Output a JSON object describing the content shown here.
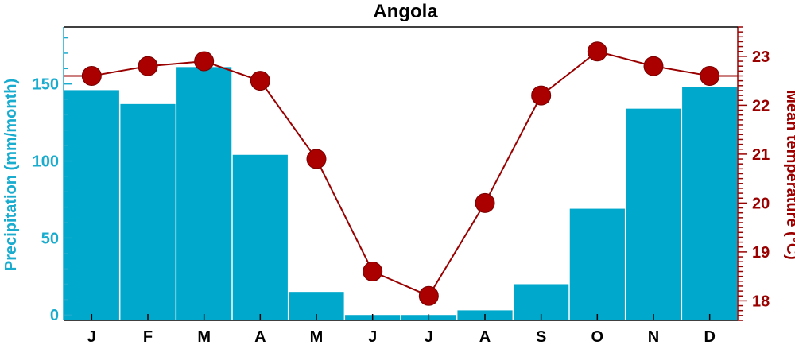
{
  "chart_data": {
    "type": "bar+line",
    "title": "Angola",
    "categories": [
      "J",
      "F",
      "M",
      "A",
      "M",
      "J",
      "J",
      "A",
      "S",
      "O",
      "N",
      "D"
    ],
    "series": [
      {
        "name": "Precipitation",
        "type": "bar",
        "axis": "left",
        "values": [
          146,
          137,
          161,
          104,
          15,
          0,
          0,
          3,
          20,
          69,
          134,
          148
        ]
      },
      {
        "name": "Mean temperature",
        "type": "line",
        "axis": "right",
        "values": [
          22.6,
          22.8,
          22.9,
          22.5,
          20.9,
          18.6,
          18.1,
          20.0,
          22.2,
          23.1,
          22.8,
          22.6
        ]
      }
    ],
    "ylabel": "Precipitation (mm/month)",
    "ylabel_right": "Mean temperature (°C)",
    "ylim": [
      -3.5,
      187
    ],
    "ylim_right": [
      17.6,
      23.6
    ],
    "yticks": [
      0,
      50,
      100,
      150
    ],
    "yticks_right": [
      18,
      19,
      20,
      21,
      22,
      23
    ],
    "colors": {
      "bars": "#00a8cc",
      "line": "#990000",
      "markers": "#aa0000",
      "left_axis": "#1aaccf",
      "right_axis": "#990000"
    },
    "grid": false
  }
}
